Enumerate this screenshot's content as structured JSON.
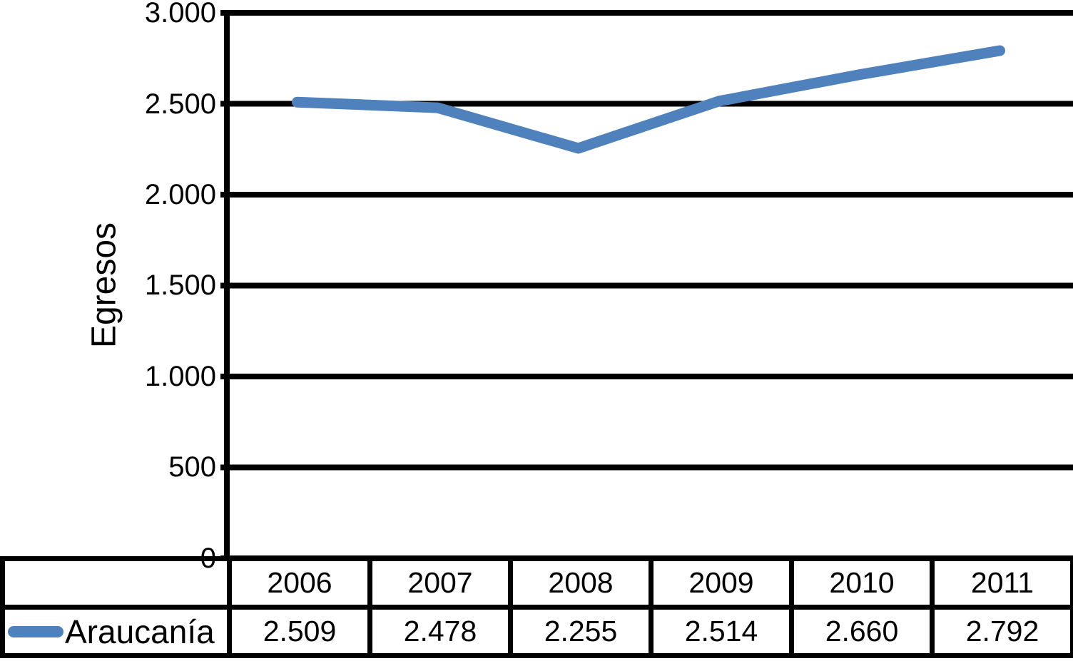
{
  "chart_data": {
    "type": "line",
    "title": "",
    "xlabel": "",
    "ylabel": "Egresos",
    "categories": [
      "2006",
      "2007",
      "2008",
      "2009",
      "2010",
      "2011"
    ],
    "series": [
      {
        "name": "Araucanía",
        "values": [
          2509,
          2478,
          2255,
          2514,
          2660,
          2792
        ],
        "color": "#4F81BD"
      }
    ],
    "value_labels": [
      "2.509",
      "2.478",
      "2.255",
      "2.514",
      "2.660",
      "2.792"
    ],
    "ylim": [
      0,
      3000
    ],
    "ytick_interval": 500,
    "ytick_labels": [
      "0",
      "500",
      "1.000",
      "1.500",
      "2.000",
      "2.500",
      "3.000"
    ],
    "grid": true,
    "grid_color": "#000000",
    "legend_position": "bottom-left-table"
  }
}
